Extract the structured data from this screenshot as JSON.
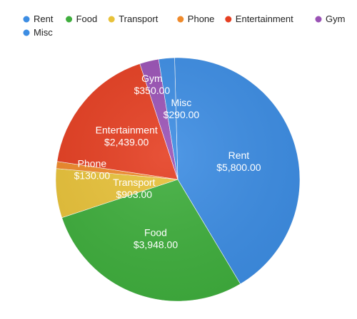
{
  "chart_data": {
    "type": "pie",
    "title": "",
    "legend_position": "top",
    "slices": [
      {
        "label": "Rent",
        "value": 5800.0,
        "value_label": "$5,800.00",
        "color": "#3d8de3"
      },
      {
        "label": "Food",
        "value": 3948.0,
        "value_label": "$3,948.00",
        "color": "#3fae3d"
      },
      {
        "label": "Transport",
        "value": 903.0,
        "value_label": "$903.00",
        "color": "#e8c23a"
      },
      {
        "label": "Phone",
        "value": 130.0,
        "value_label": "$130.00",
        "color": "#ef8a2b"
      },
      {
        "label": "Entertainment",
        "value": 2439.0,
        "value_label": "$2,439.00",
        "color": "#e53f22"
      },
      {
        "label": "Gym",
        "value": 350.0,
        "value_label": "$350.00",
        "color": "#9a52b5"
      },
      {
        "label": "Misc",
        "value": 290.0,
        "value_label": "$290.00",
        "color": "#3d8de3"
      }
    ]
  }
}
